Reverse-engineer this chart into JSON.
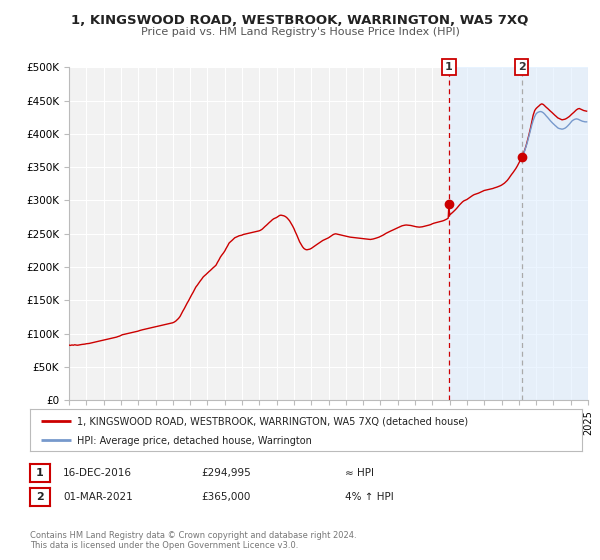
{
  "title": "1, KINGSWOOD ROAD, WESTBROOK, WARRINGTON, WA5 7XQ",
  "subtitle": "Price paid vs. HM Land Registry's House Price Index (HPI)",
  "background_color": "#ffffff",
  "plot_bg_color": "#f2f2f2",
  "grid_color": "#ffffff",
  "red_line_color": "#cc0000",
  "blue_line_color": "#7799cc",
  "shade_color": "#ddeeff",
  "marker1_date_x": 2016.96,
  "marker1_price": 294995,
  "marker2_date_x": 2021.17,
  "marker2_price": 365000,
  "legend_label_red": "1, KINGSWOOD ROAD, WESTBROOK, WARRINGTON, WA5 7XQ (detached house)",
  "legend_label_blue": "HPI: Average price, detached house, Warrington",
  "annotation1": [
    "1",
    "16-DEC-2016",
    "£294,995",
    "≈ HPI"
  ],
  "annotation2": [
    "2",
    "01-MAR-2021",
    "£365,000",
    "4% ↑ HPI"
  ],
  "footnote": "Contains HM Land Registry data © Crown copyright and database right 2024.\nThis data is licensed under the Open Government Licence v3.0.",
  "xmin": 1995,
  "xmax": 2025,
  "ymin": 0,
  "ymax": 500000,
  "yticks": [
    0,
    50000,
    100000,
    150000,
    200000,
    250000,
    300000,
    350000,
    400000,
    450000,
    500000
  ],
  "ytick_labels": [
    "£0",
    "£50K",
    "£100K",
    "£150K",
    "£200K",
    "£250K",
    "£300K",
    "£350K",
    "£400K",
    "£450K",
    "£500K"
  ],
  "xticks": [
    1995,
    1996,
    1997,
    1998,
    1999,
    2000,
    2001,
    2002,
    2003,
    2004,
    2005,
    2006,
    2007,
    2008,
    2009,
    2010,
    2011,
    2012,
    2013,
    2014,
    2015,
    2016,
    2017,
    2018,
    2019,
    2020,
    2021,
    2022,
    2023,
    2024,
    2025
  ],
  "red_hpi_data": [
    [
      1995.0,
      83000
    ],
    [
      1995.08,
      82500
    ],
    [
      1995.17,
      83200
    ],
    [
      1995.25,
      82800
    ],
    [
      1995.33,
      83500
    ],
    [
      1995.42,
      83000
    ],
    [
      1995.5,
      82800
    ],
    [
      1995.58,
      83200
    ],
    [
      1995.67,
      83800
    ],
    [
      1995.75,
      84000
    ],
    [
      1995.83,
      84200
    ],
    [
      1995.92,
      84500
    ],
    [
      1996.0,
      85000
    ],
    [
      1996.08,
      85200
    ],
    [
      1996.17,
      85500
    ],
    [
      1996.25,
      86000
    ],
    [
      1996.33,
      86500
    ],
    [
      1996.42,
      87000
    ],
    [
      1996.5,
      87500
    ],
    [
      1996.58,
      88000
    ],
    [
      1996.67,
      88500
    ],
    [
      1996.75,
      89000
    ],
    [
      1996.83,
      89500
    ],
    [
      1996.92,
      90000
    ],
    [
      1997.0,
      90500
    ],
    [
      1997.08,
      91000
    ],
    [
      1997.17,
      91500
    ],
    [
      1997.25,
      92000
    ],
    [
      1997.33,
      92500
    ],
    [
      1997.42,
      93000
    ],
    [
      1997.5,
      93500
    ],
    [
      1997.58,
      94000
    ],
    [
      1997.67,
      94500
    ],
    [
      1997.75,
      95000
    ],
    [
      1997.83,
      95800
    ],
    [
      1997.92,
      96500
    ],
    [
      1998.0,
      97500
    ],
    [
      1998.08,
      98500
    ],
    [
      1998.17,
      99000
    ],
    [
      1998.25,
      99500
    ],
    [
      1998.33,
      100000
    ],
    [
      1998.42,
      100500
    ],
    [
      1998.5,
      101000
    ],
    [
      1998.58,
      101500
    ],
    [
      1998.67,
      102000
    ],
    [
      1998.75,
      102500
    ],
    [
      1998.83,
      103000
    ],
    [
      1998.92,
      103500
    ],
    [
      1999.0,
      104000
    ],
    [
      1999.08,
      104800
    ],
    [
      1999.17,
      105500
    ],
    [
      1999.25,
      106000
    ],
    [
      1999.33,
      106500
    ],
    [
      1999.42,
      107000
    ],
    [
      1999.5,
      107500
    ],
    [
      1999.58,
      108000
    ],
    [
      1999.67,
      108500
    ],
    [
      1999.75,
      109000
    ],
    [
      1999.83,
      109500
    ],
    [
      1999.92,
      110000
    ],
    [
      2000.0,
      110500
    ],
    [
      2000.08,
      111000
    ],
    [
      2000.17,
      111500
    ],
    [
      2000.25,
      112000
    ],
    [
      2000.33,
      112500
    ],
    [
      2000.42,
      113000
    ],
    [
      2000.5,
      113500
    ],
    [
      2000.58,
      114000
    ],
    [
      2000.67,
      114500
    ],
    [
      2000.75,
      115000
    ],
    [
      2000.83,
      115500
    ],
    [
      2000.92,
      116000
    ],
    [
      2001.0,
      116500
    ],
    [
      2001.08,
      117500
    ],
    [
      2001.17,
      119000
    ],
    [
      2001.25,
      121000
    ],
    [
      2001.33,
      123000
    ],
    [
      2001.42,
      126000
    ],
    [
      2001.5,
      130000
    ],
    [
      2001.58,
      134000
    ],
    [
      2001.67,
      138000
    ],
    [
      2001.75,
      142000
    ],
    [
      2001.83,
      146000
    ],
    [
      2001.92,
      150000
    ],
    [
      2002.0,
      154000
    ],
    [
      2002.08,
      158000
    ],
    [
      2002.17,
      162000
    ],
    [
      2002.25,
      166000
    ],
    [
      2002.33,
      170000
    ],
    [
      2002.42,
      173000
    ],
    [
      2002.5,
      176000
    ],
    [
      2002.58,
      179000
    ],
    [
      2002.67,
      182000
    ],
    [
      2002.75,
      185000
    ],
    [
      2002.83,
      187000
    ],
    [
      2002.92,
      189000
    ],
    [
      2003.0,
      191000
    ],
    [
      2003.08,
      193000
    ],
    [
      2003.17,
      195000
    ],
    [
      2003.25,
      197000
    ],
    [
      2003.33,
      199000
    ],
    [
      2003.42,
      201000
    ],
    [
      2003.5,
      203000
    ],
    [
      2003.58,
      207000
    ],
    [
      2003.67,
      211000
    ],
    [
      2003.75,
      215000
    ],
    [
      2003.83,
      218000
    ],
    [
      2003.92,
      221000
    ],
    [
      2004.0,
      224000
    ],
    [
      2004.08,
      228000
    ],
    [
      2004.17,
      232000
    ],
    [
      2004.25,
      236000
    ],
    [
      2004.33,
      238000
    ],
    [
      2004.42,
      240000
    ],
    [
      2004.5,
      242000
    ],
    [
      2004.58,
      244000
    ],
    [
      2004.67,
      245000
    ],
    [
      2004.75,
      246000
    ],
    [
      2004.83,
      247000
    ],
    [
      2004.92,
      247500
    ],
    [
      2005.0,
      248000
    ],
    [
      2005.08,
      249000
    ],
    [
      2005.17,
      249500
    ],
    [
      2005.25,
      250000
    ],
    [
      2005.33,
      250500
    ],
    [
      2005.42,
      251000
    ],
    [
      2005.5,
      251500
    ],
    [
      2005.58,
      252000
    ],
    [
      2005.67,
      252500
    ],
    [
      2005.75,
      253000
    ],
    [
      2005.83,
      253500
    ],
    [
      2005.92,
      254000
    ],
    [
      2006.0,
      254500
    ],
    [
      2006.08,
      255500
    ],
    [
      2006.17,
      257000
    ],
    [
      2006.25,
      259000
    ],
    [
      2006.33,
      261000
    ],
    [
      2006.42,
      263000
    ],
    [
      2006.5,
      265000
    ],
    [
      2006.58,
      267000
    ],
    [
      2006.67,
      269000
    ],
    [
      2006.75,
      271000
    ],
    [
      2006.83,
      272500
    ],
    [
      2006.92,
      273500
    ],
    [
      2007.0,
      274500
    ],
    [
      2007.08,
      276000
    ],
    [
      2007.17,
      277500
    ],
    [
      2007.25,
      278000
    ],
    [
      2007.33,
      277500
    ],
    [
      2007.42,
      277000
    ],
    [
      2007.5,
      276000
    ],
    [
      2007.58,
      274500
    ],
    [
      2007.67,
      272000
    ],
    [
      2007.75,
      269500
    ],
    [
      2007.83,
      266000
    ],
    [
      2007.92,
      262000
    ],
    [
      2008.0,
      258000
    ],
    [
      2008.08,
      253000
    ],
    [
      2008.17,
      248000
    ],
    [
      2008.25,
      243000
    ],
    [
      2008.33,
      238000
    ],
    [
      2008.42,
      234000
    ],
    [
      2008.5,
      230500
    ],
    [
      2008.58,
      228000
    ],
    [
      2008.67,
      226500
    ],
    [
      2008.75,
      226000
    ],
    [
      2008.83,
      226500
    ],
    [
      2008.92,
      227000
    ],
    [
      2009.0,
      228000
    ],
    [
      2009.08,
      229500
    ],
    [
      2009.17,
      231000
    ],
    [
      2009.25,
      232500
    ],
    [
      2009.33,
      234000
    ],
    [
      2009.42,
      235500
    ],
    [
      2009.5,
      237000
    ],
    [
      2009.58,
      238500
    ],
    [
      2009.67,
      240000
    ],
    [
      2009.75,
      241000
    ],
    [
      2009.83,
      242000
    ],
    [
      2009.92,
      243000
    ],
    [
      2010.0,
      244000
    ],
    [
      2010.08,
      245500
    ],
    [
      2010.17,
      247000
    ],
    [
      2010.25,
      248500
    ],
    [
      2010.33,
      249500
    ],
    [
      2010.42,
      250000
    ],
    [
      2010.5,
      249500
    ],
    [
      2010.58,
      249000
    ],
    [
      2010.67,
      248500
    ],
    [
      2010.75,
      248000
    ],
    [
      2010.83,
      247500
    ],
    [
      2010.92,
      247000
    ],
    [
      2011.0,
      246500
    ],
    [
      2011.08,
      246000
    ],
    [
      2011.17,
      245500
    ],
    [
      2011.25,
      245000
    ],
    [
      2011.33,
      244800
    ],
    [
      2011.42,
      244500
    ],
    [
      2011.5,
      244200
    ],
    [
      2011.58,
      244000
    ],
    [
      2011.67,
      243800
    ],
    [
      2011.75,
      243500
    ],
    [
      2011.83,
      243200
    ],
    [
      2011.92,
      243000
    ],
    [
      2012.0,
      242800
    ],
    [
      2012.08,
      242500
    ],
    [
      2012.17,
      242200
    ],
    [
      2012.25,
      242000
    ],
    [
      2012.33,
      241800
    ],
    [
      2012.42,
      241500
    ],
    [
      2012.5,
      241800
    ],
    [
      2012.58,
      242200
    ],
    [
      2012.67,
      242800
    ],
    [
      2012.75,
      243500
    ],
    [
      2012.83,
      244200
    ],
    [
      2012.92,
      245000
    ],
    [
      2013.0,
      246000
    ],
    [
      2013.08,
      247000
    ],
    [
      2013.17,
      248200
    ],
    [
      2013.25,
      249500
    ],
    [
      2013.33,
      250800
    ],
    [
      2013.42,
      252000
    ],
    [
      2013.5,
      253000
    ],
    [
      2013.58,
      254000
    ],
    [
      2013.67,
      255000
    ],
    [
      2013.75,
      256000
    ],
    [
      2013.83,
      257000
    ],
    [
      2013.92,
      258000
    ],
    [
      2014.0,
      259000
    ],
    [
      2014.08,
      260000
    ],
    [
      2014.17,
      261000
    ],
    [
      2014.25,
      262000
    ],
    [
      2014.33,
      262500
    ],
    [
      2014.42,
      263000
    ],
    [
      2014.5,
      263200
    ],
    [
      2014.58,
      263000
    ],
    [
      2014.67,
      262800
    ],
    [
      2014.75,
      262500
    ],
    [
      2014.83,
      262000
    ],
    [
      2014.92,
      261500
    ],
    [
      2015.0,
      261000
    ],
    [
      2015.08,
      260500
    ],
    [
      2015.17,
      260200
    ],
    [
      2015.25,
      260000
    ],
    [
      2015.33,
      260200
    ],
    [
      2015.42,
      260500
    ],
    [
      2015.5,
      261000
    ],
    [
      2015.58,
      261500
    ],
    [
      2015.67,
      262000
    ],
    [
      2015.75,
      262500
    ],
    [
      2015.83,
      263200
    ],
    [
      2015.92,
      264000
    ],
    [
      2016.0,
      265000
    ],
    [
      2016.08,
      265800
    ],
    [
      2016.17,
      266500
    ],
    [
      2016.25,
      267000
    ],
    [
      2016.33,
      267500
    ],
    [
      2016.42,
      268000
    ],
    [
      2016.5,
      268500
    ],
    [
      2016.58,
      269200
    ],
    [
      2016.67,
      270000
    ],
    [
      2016.75,
      271000
    ],
    [
      2016.83,
      272000
    ],
    [
      2016.92,
      273500
    ],
    [
      2016.96,
      294995
    ],
    [
      2017.0,
      278000
    ],
    [
      2017.08,
      280000
    ],
    [
      2017.17,
      282000
    ],
    [
      2017.25,
      284000
    ],
    [
      2017.33,
      286000
    ],
    [
      2017.42,
      288500
    ],
    [
      2017.5,
      291000
    ],
    [
      2017.58,
      293500
    ],
    [
      2017.67,
      296000
    ],
    [
      2017.75,
      298000
    ],
    [
      2017.83,
      299500
    ],
    [
      2017.92,
      300500
    ],
    [
      2018.0,
      301500
    ],
    [
      2018.08,
      303000
    ],
    [
      2018.17,
      304500
    ],
    [
      2018.25,
      306000
    ],
    [
      2018.33,
      307500
    ],
    [
      2018.42,
      308800
    ],
    [
      2018.5,
      309500
    ],
    [
      2018.58,
      310200
    ],
    [
      2018.67,
      311000
    ],
    [
      2018.75,
      312000
    ],
    [
      2018.83,
      313000
    ],
    [
      2018.92,
      314000
    ],
    [
      2019.0,
      315000
    ],
    [
      2019.08,
      315500
    ],
    [
      2019.17,
      316000
    ],
    [
      2019.25,
      316500
    ],
    [
      2019.33,
      317000
    ],
    [
      2019.42,
      317500
    ],
    [
      2019.5,
      318000
    ],
    [
      2019.58,
      318800
    ],
    [
      2019.67,
      319500
    ],
    [
      2019.75,
      320200
    ],
    [
      2019.83,
      321000
    ],
    [
      2019.92,
      322000
    ],
    [
      2020.0,
      323000
    ],
    [
      2020.08,
      324500
    ],
    [
      2020.17,
      326000
    ],
    [
      2020.25,
      328000
    ],
    [
      2020.33,
      330000
    ],
    [
      2020.42,
      333000
    ],
    [
      2020.5,
      336000
    ],
    [
      2020.58,
      339000
    ],
    [
      2020.67,
      342000
    ],
    [
      2020.75,
      345000
    ],
    [
      2020.83,
      348000
    ],
    [
      2020.92,
      352000
    ],
    [
      2021.0,
      356000
    ],
    [
      2021.08,
      360000
    ],
    [
      2021.17,
      365000
    ],
    [
      2021.25,
      370000
    ],
    [
      2021.33,
      375000
    ],
    [
      2021.42,
      382000
    ],
    [
      2021.5,
      390000
    ],
    [
      2021.58,
      398000
    ],
    [
      2021.67,
      408000
    ],
    [
      2021.75,
      418000
    ],
    [
      2021.83,
      428000
    ],
    [
      2021.92,
      435000
    ],
    [
      2022.0,
      438000
    ],
    [
      2022.08,
      440000
    ],
    [
      2022.17,
      442000
    ],
    [
      2022.25,
      444000
    ],
    [
      2022.33,
      445000
    ],
    [
      2022.42,
      444000
    ],
    [
      2022.5,
      442000
    ],
    [
      2022.58,
      440000
    ],
    [
      2022.67,
      438000
    ],
    [
      2022.75,
      436000
    ],
    [
      2022.83,
      434000
    ],
    [
      2022.92,
      432000
    ],
    [
      2023.0,
      430000
    ],
    [
      2023.08,
      428000
    ],
    [
      2023.17,
      426000
    ],
    [
      2023.25,
      424000
    ],
    [
      2023.33,
      423000
    ],
    [
      2023.42,
      422000
    ],
    [
      2023.5,
      421000
    ],
    [
      2023.58,
      421500
    ],
    [
      2023.67,
      422000
    ],
    [
      2023.75,
      423000
    ],
    [
      2023.83,
      424500
    ],
    [
      2023.92,
      426000
    ],
    [
      2024.0,
      428000
    ],
    [
      2024.08,
      430000
    ],
    [
      2024.17,
      432000
    ],
    [
      2024.25,
      434000
    ],
    [
      2024.33,
      436000
    ],
    [
      2024.42,
      437500
    ],
    [
      2024.5,
      438000
    ],
    [
      2024.58,
      437000
    ],
    [
      2024.67,
      436000
    ],
    [
      2024.75,
      435000
    ],
    [
      2024.83,
      434500
    ],
    [
      2024.92,
      434000
    ]
  ],
  "blue_hpi_data": [
    [
      2021.17,
      363000
    ],
    [
      2021.25,
      368000
    ],
    [
      2021.33,
      374000
    ],
    [
      2021.42,
      381000
    ],
    [
      2021.5,
      388000
    ],
    [
      2021.58,
      396000
    ],
    [
      2021.67,
      405000
    ],
    [
      2021.75,
      413000
    ],
    [
      2021.83,
      420000
    ],
    [
      2021.92,
      426000
    ],
    [
      2022.0,
      430000
    ],
    [
      2022.08,
      432000
    ],
    [
      2022.17,
      433000
    ],
    [
      2022.25,
      433500
    ],
    [
      2022.33,
      433000
    ],
    [
      2022.42,
      431500
    ],
    [
      2022.5,
      429500
    ],
    [
      2022.58,
      427000
    ],
    [
      2022.67,
      424500
    ],
    [
      2022.75,
      422000
    ],
    [
      2022.83,
      419500
    ],
    [
      2022.92,
      417000
    ],
    [
      2023.0,
      415000
    ],
    [
      2023.08,
      413000
    ],
    [
      2023.17,
      411000
    ],
    [
      2023.25,
      409000
    ],
    [
      2023.33,
      408000
    ],
    [
      2023.42,
      407500
    ],
    [
      2023.5,
      407000
    ],
    [
      2023.58,
      407500
    ],
    [
      2023.67,
      408500
    ],
    [
      2023.75,
      410000
    ],
    [
      2023.83,
      412000
    ],
    [
      2023.92,
      414500
    ],
    [
      2024.0,
      417000
    ],
    [
      2024.08,
      419500
    ],
    [
      2024.17,
      421000
    ],
    [
      2024.25,
      422000
    ],
    [
      2024.33,
      422500
    ],
    [
      2024.42,
      422000
    ],
    [
      2024.5,
      421000
    ],
    [
      2024.58,
      420000
    ],
    [
      2024.67,
      419000
    ],
    [
      2024.75,
      418500
    ],
    [
      2024.83,
      418000
    ],
    [
      2024.92,
      418000
    ]
  ],
  "shade_x_start": 2016.96,
  "shade_x_end": 2025.0
}
